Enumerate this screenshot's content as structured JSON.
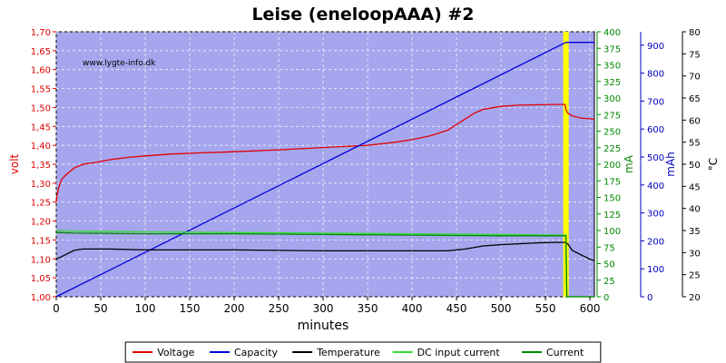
{
  "chart_data": {
    "type": "line",
    "title": "Leise (eneloopAAA) #2",
    "watermark": "www.lygte-info.dk",
    "xlabel": "minutes",
    "xlim": [
      0,
      605
    ],
    "xticks": [
      0,
      50,
      100,
      150,
      200,
      250,
      300,
      350,
      400,
      450,
      500,
      550,
      600
    ],
    "axes": {
      "volt": {
        "label": "volt",
        "color": "#e00000",
        "lim": [
          1.0,
          1.7
        ],
        "ticks": [
          "1,00",
          "1,05",
          "1,10",
          "1,15",
          "1,20",
          "1,25",
          "1,30",
          "1,35",
          "1,40",
          "1,45",
          "1,50",
          "1,55",
          "1,60",
          "1,65",
          "1,70"
        ]
      },
      "mA": {
        "label": "mA",
        "color": "#008800",
        "lim": [
          0,
          400
        ],
        "ticks": [
          "0",
          "25",
          "50",
          "75",
          "100",
          "125",
          "150",
          "175",
          "200",
          "225",
          "250",
          "275",
          "300",
          "325",
          "350",
          "375",
          "400"
        ]
      },
      "mAh": {
        "label": "mAh",
        "color": "#0000bb",
        "lim": [
          0,
          948
        ],
        "ticks": [
          "0",
          "100",
          "200",
          "300",
          "400",
          "500",
          "600",
          "700",
          "800",
          "900"
        ]
      },
      "celsius": {
        "label": "°C",
        "color": "#000000",
        "lim": [
          20,
          80
        ],
        "ticks": [
          "20",
          "25",
          "30",
          "35",
          "40",
          "45",
          "50",
          "55",
          "60",
          "65",
          "70",
          "75",
          "80"
        ]
      }
    },
    "plot_bg": "#a6a6ee",
    "marker": {
      "x": 573,
      "color": "#ffff00"
    },
    "series": [
      {
        "name": "Voltage",
        "color": "#e00000",
        "axis": "volt",
        "x": [
          0,
          1,
          3,
          6,
          10,
          15,
          20,
          30,
          45,
          60,
          80,
          100,
          130,
          160,
          200,
          250,
          300,
          350,
          380,
          400,
          420,
          440,
          460,
          470,
          480,
          500,
          520,
          540,
          555,
          565,
          572,
          573,
          575,
          580,
          590,
          600,
          605
        ],
        "y": [
          1.25,
          1.27,
          1.29,
          1.31,
          1.32,
          1.33,
          1.34,
          1.35,
          1.355,
          1.362,
          1.368,
          1.372,
          1.377,
          1.38,
          1.383,
          1.388,
          1.394,
          1.4,
          1.408,
          1.415,
          1.425,
          1.44,
          1.47,
          1.485,
          1.495,
          1.503,
          1.506,
          1.507,
          1.508,
          1.508,
          1.508,
          1.495,
          1.485,
          1.478,
          1.472,
          1.47,
          1.469
        ]
      },
      {
        "name": "Capacity",
        "color": "#0000dd",
        "axis": "mAh",
        "x": [
          0,
          573,
          605
        ],
        "y": [
          0,
          910,
          910
        ]
      },
      {
        "name": "Temperature",
        "color": "#000000",
        "axis": "celsius",
        "x": [
          0,
          5,
          10,
          20,
          30,
          60,
          100,
          150,
          200,
          250,
          300,
          350,
          400,
          440,
          460,
          480,
          500,
          520,
          540,
          560,
          572,
          575,
          580,
          590,
          600,
          605
        ],
        "y": [
          28.5,
          29,
          29.5,
          30.5,
          30.8,
          30.8,
          30.6,
          30.6,
          30.6,
          30.5,
          30.4,
          30.4,
          30.4,
          30.4,
          30.8,
          31.5,
          31.8,
          32,
          32.2,
          32.3,
          32.3,
          32,
          30.5,
          29.5,
          28.5,
          28.2
        ]
      },
      {
        "name": "DC input current",
        "color": "#33dd33",
        "axis": "mA",
        "x": [
          0,
          20,
          100,
          200,
          300,
          400,
          500,
          573,
          574,
          605
        ],
        "y": [
          100,
          99,
          98,
          97,
          96,
          95,
          94,
          93,
          0,
          0
        ]
      },
      {
        "name": "Current",
        "color": "#008800",
        "axis": "mA",
        "x": [
          0,
          20,
          100,
          200,
          300,
          400,
          500,
          573,
          574,
          605
        ],
        "y": [
          97,
          96,
          95,
          95,
          94,
          93,
          92,
          92,
          0,
          0
        ]
      }
    ],
    "legend_position": "bottom-center",
    "grid": true
  }
}
